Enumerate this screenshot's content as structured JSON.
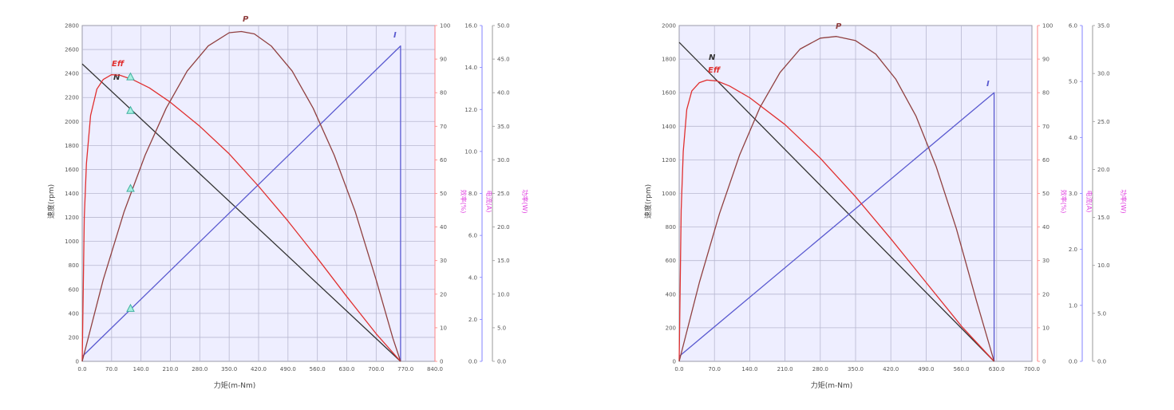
{
  "chart_data": [
    {
      "type": "line",
      "xlabel": "力矩(m-Nm)",
      "ylabel": "速度(rpm)",
      "xlim": [
        0,
        840
      ],
      "x_ticks": [
        "0.0",
        "70.0",
        "140.0",
        "210.0",
        "280.0",
        "350.0",
        "420.0",
        "490.0",
        "560.0",
        "630.0",
        "700.0",
        "770.0",
        "840.0"
      ],
      "y_ticks": [
        "0",
        "200",
        "400",
        "600",
        "800",
        "1000",
        "1200",
        "1400",
        "1600",
        "1800",
        "2000",
        "2200",
        "2400",
        "2600",
        "2800"
      ],
      "ylim": [
        0,
        2800
      ],
      "right_axes": [
        {
          "label": "效率(%)",
          "ticks": [
            "0",
            "10",
            "20",
            "30",
            "40",
            "50",
            "60",
            "70",
            "80",
            "90",
            "100"
          ],
          "color": "#ff8080"
        },
        {
          "label": "电流(A)",
          "ticks": [
            "0.0",
            "2.0",
            "4.0",
            "6.0",
            "8.0",
            "10.0",
            "12.0",
            "14.0",
            "16.0"
          ],
          "color": "#8080ff"
        },
        {
          "label": "功率(W)",
          "ticks": [
            "0.0",
            "5.0",
            "10.0",
            "15.0",
            "20.0",
            "25.0",
            "30.0",
            "35.0",
            "40.0",
            "45.0",
            "50.0"
          ],
          "color": "#999999"
        }
      ],
      "series": [
        {
          "name": "N",
          "color": "#333333",
          "x": [
            0,
            758
          ],
          "y": [
            2480,
            0
          ]
        },
        {
          "name": "I",
          "color": "#5a5ad0",
          "x": [
            0,
            758,
            758
          ],
          "y": [
            40,
            2630,
            0
          ]
        },
        {
          "name": "Eff",
          "color": "#e03030",
          "x": [
            0,
            5,
            10,
            20,
            35,
            50,
            70,
            90,
            120,
            160,
            210,
            280,
            350,
            420,
            490,
            560,
            630,
            700,
            758
          ],
          "y": [
            0,
            1200,
            1650,
            2050,
            2270,
            2350,
            2390,
            2385,
            2350,
            2280,
            2160,
            1960,
            1730,
            1460,
            1170,
            860,
            540,
            230,
            0
          ]
        },
        {
          "name": "P",
          "color": "#904040",
          "x": [
            0,
            50,
            100,
            150,
            200,
            250,
            300,
            350,
            379,
            410,
            450,
            500,
            550,
            600,
            650,
            700,
            740,
            758
          ],
          "y": [
            0,
            680,
            1250,
            1720,
            2110,
            2420,
            2630,
            2740,
            2750,
            2730,
            2630,
            2420,
            2110,
            1720,
            1250,
            680,
            190,
            0
          ]
        }
      ],
      "markers": {
        "color": "#40b0a0",
        "x": [
          115,
          115,
          115,
          115
        ],
        "y": [
          440,
          1440,
          2090,
          2370
        ]
      }
    },
    {
      "type": "line",
      "xlabel": "力矩(m-Nm)",
      "ylabel": "速度(rpm)",
      "xlim": [
        0,
        700
      ],
      "x_ticks": [
        "0.0",
        "70.0",
        "140.0",
        "210.0",
        "280.0",
        "350.0",
        "420.0",
        "490.0",
        "560.0",
        "630.0",
        "700.0"
      ],
      "y_ticks": [
        "0",
        "200",
        "400",
        "600",
        "800",
        "1000",
        "1200",
        "1400",
        "1600",
        "1800",
        "2000"
      ],
      "ylim": [
        0,
        2000
      ],
      "right_axes": [
        {
          "label": "效率(%)",
          "ticks": [
            "0",
            "10",
            "20",
            "30",
            "40",
            "50",
            "60",
            "70",
            "80",
            "90",
            "100"
          ],
          "color": "#ff8080"
        },
        {
          "label": "电流(A)",
          "ticks": [
            "0.0",
            "1.0",
            "2.0",
            "3.0",
            "4.0",
            "5.0",
            "6.0"
          ],
          "color": "#8080ff"
        },
        {
          "label": "功率(W)",
          "ticks": [
            "0.0",
            "5.0",
            "10.0",
            "15.0",
            "20.0",
            "25.0",
            "30.0",
            "35.0"
          ],
          "color": "#999999"
        }
      ],
      "series": [
        {
          "name": "N",
          "color": "#333333",
          "x": [
            0,
            625
          ],
          "y": [
            1900,
            0
          ]
        },
        {
          "name": "I",
          "color": "#5a5ad0",
          "x": [
            0,
            625,
            625
          ],
          "y": [
            30,
            1600,
            0
          ]
        },
        {
          "name": "Eff",
          "color": "#e03030",
          "x": [
            0,
            4,
            8,
            15,
            25,
            40,
            55,
            75,
            100,
            140,
            210,
            280,
            350,
            420,
            490,
            560,
            625
          ],
          "y": [
            0,
            900,
            1250,
            1500,
            1610,
            1660,
            1675,
            1670,
            1640,
            1570,
            1410,
            1210,
            980,
            730,
            470,
            210,
            0
          ]
        },
        {
          "name": "P",
          "color": "#904040",
          "x": [
            0,
            40,
            80,
            120,
            160,
            200,
            240,
            280,
            312,
            350,
            390,
            430,
            470,
            510,
            550,
            590,
            625
          ],
          "y": [
            0,
            470,
            880,
            1230,
            1510,
            1720,
            1860,
            1925,
            1935,
            1910,
            1830,
            1680,
            1460,
            1160,
            790,
            360,
            0
          ]
        }
      ]
    }
  ]
}
